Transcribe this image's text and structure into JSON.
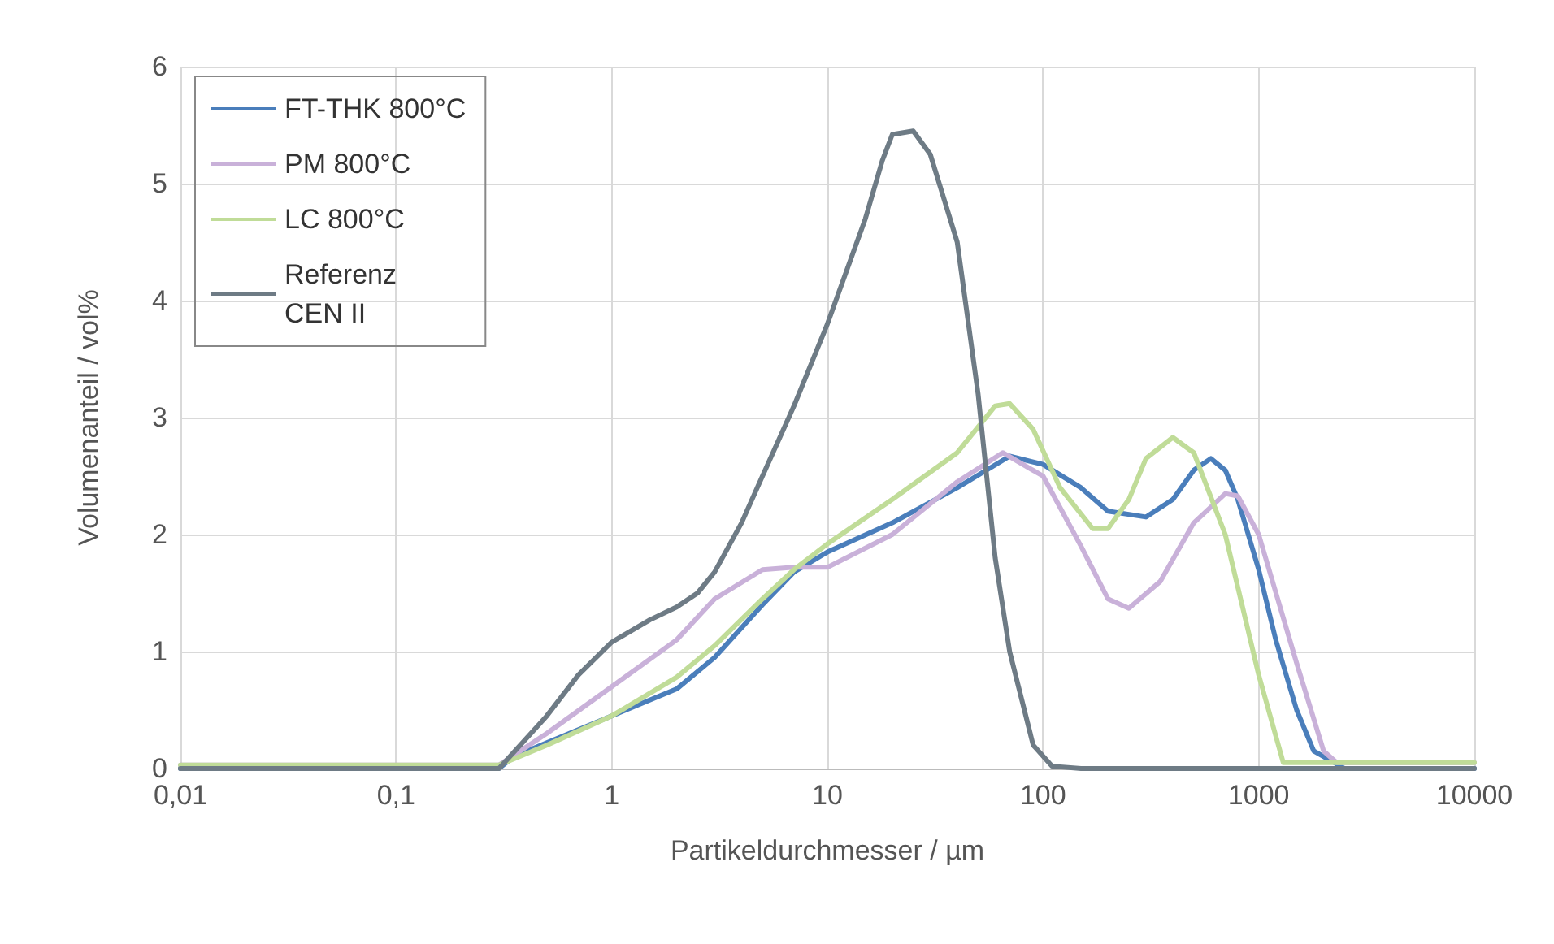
{
  "chart_data": {
    "type": "line",
    "xlabel": "Partikeldurchmesser / µm",
    "ylabel": "Volumenanteil / vol%",
    "log": "x",
    "grid": true,
    "legend": "top left",
    "marker": "none",
    "line_style": "solid",
    "xlim": [
      0.01,
      10000
    ],
    "xticks": [
      {
        "value": 0.01,
        "label": "0,01"
      },
      {
        "value": 0.1,
        "label": "0,1"
      },
      1,
      10,
      100,
      1000,
      10000
    ],
    "ylim": [
      0,
      6
    ],
    "yticks": [
      0,
      1,
      2,
      3,
      4,
      5,
      6
    ],
    "series": [
      {
        "name": "FT-THK 800°C",
        "color": "#4a7ebb",
        "x": [
          0.01,
          0.3,
          0.35,
          0.5,
          1,
          2,
          3,
          5,
          7,
          10,
          20,
          40,
          70,
          100,
          150,
          200,
          300,
          400,
          500,
          600,
          700,
          800,
          1000,
          1200,
          1500,
          1800,
          2500,
          10000
        ],
        "values": [
          0,
          0,
          0.1,
          0.22,
          0.45,
          0.68,
          0.95,
          1.4,
          1.68,
          1.85,
          2.1,
          2.4,
          2.67,
          2.6,
          2.4,
          2.2,
          2.15,
          2.3,
          2.55,
          2.65,
          2.55,
          2.3,
          1.7,
          1.1,
          0.5,
          0.15,
          0,
          0
        ]
      },
      {
        "name": "PM 800°C",
        "color": "#c9b1d9",
        "x": [
          0.01,
          0.3,
          0.5,
          1,
          2,
          3,
          5,
          7,
          10,
          20,
          40,
          65,
          100,
          150,
          200,
          250,
          350,
          500,
          700,
          800,
          1000,
          1500,
          2000,
          2300,
          10000
        ],
        "values": [
          0.03,
          0.03,
          0.3,
          0.7,
          1.1,
          1.45,
          1.7,
          1.72,
          1.72,
          2.0,
          2.45,
          2.7,
          2.5,
          1.9,
          1.45,
          1.37,
          1.6,
          2.1,
          2.35,
          2.33,
          2.0,
          0.9,
          0.15,
          0.05,
          0.05
        ]
      },
      {
        "name": "LC 800°C",
        "color": "#c0dc98",
        "x": [
          0.01,
          0.3,
          0.5,
          1,
          2,
          3,
          5,
          7,
          10,
          20,
          40,
          60,
          70,
          90,
          120,
          170,
          200,
          250,
          300,
          400,
          500,
          700,
          1000,
          1300,
          10000
        ],
        "values": [
          0.03,
          0.03,
          0.2,
          0.45,
          0.78,
          1.05,
          1.45,
          1.7,
          1.92,
          2.3,
          2.7,
          3.1,
          3.12,
          2.9,
          2.4,
          2.05,
          2.05,
          2.3,
          2.65,
          2.83,
          2.7,
          2.0,
          0.8,
          0.05,
          0.05
        ]
      },
      {
        "name": "Referenz\nCEN II",
        "color": "#6e7b85",
        "x": [
          0.01,
          0.3,
          0.5,
          0.7,
          1,
          1.5,
          2,
          2.5,
          3,
          4,
          5,
          7,
          10,
          15,
          18,
          20,
          25,
          30,
          40,
          50,
          60,
          70,
          90,
          110,
          150,
          10000
        ],
        "values": [
          0,
          0,
          0.45,
          0.8,
          1.08,
          1.27,
          1.38,
          1.5,
          1.68,
          2.1,
          2.5,
          3.1,
          3.8,
          4.7,
          5.2,
          5.42,
          5.45,
          5.25,
          4.5,
          3.2,
          1.8,
          1.0,
          0.2,
          0.02,
          0,
          0
        ]
      }
    ]
  }
}
